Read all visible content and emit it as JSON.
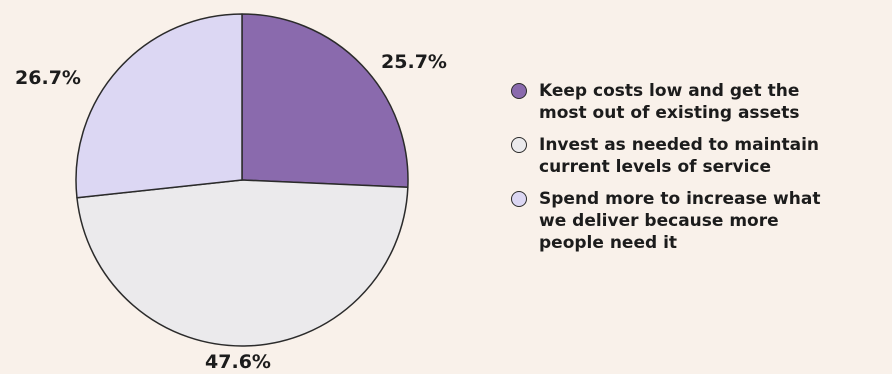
{
  "chart_data": {
    "type": "pie",
    "slices": [
      {
        "label": "Keep costs low and get the\nmost out of existing assets",
        "value": 25.7,
        "value_label": "25.7%",
        "color": "#8a6aad"
      },
      {
        "label": "Invest as needed to maintain\ncurrent levels of service",
        "value": 47.6,
        "value_label": "47.6%",
        "color": "#ebeaec"
      },
      {
        "label": "Spend more to increase what\nwe deliver because more\npeople need it",
        "value": 26.7,
        "value_label": "26.7%",
        "color": "#dcd7f3"
      }
    ],
    "legend_position": "right",
    "background": "#f9f1ea"
  }
}
